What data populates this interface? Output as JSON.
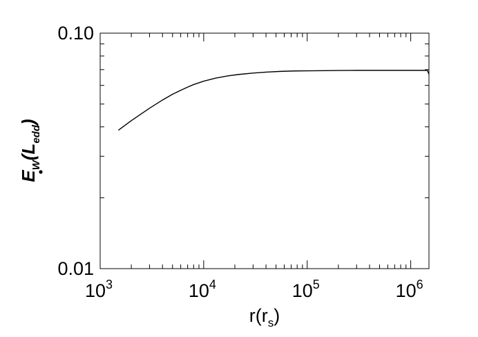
{
  "chart_data": {
    "type": "line",
    "title": "",
    "xscale": "log",
    "yscale": "log",
    "xlim": [
      1000,
      1500000
    ],
    "ylim": [
      0.01,
      0.1
    ],
    "x_ticks": [
      {
        "value": 1000,
        "base": "10",
        "exp": "3"
      },
      {
        "value": 10000,
        "base": "10",
        "exp": "4"
      },
      {
        "value": 100000,
        "base": "10",
        "exp": "5"
      },
      {
        "value": 1000000,
        "base": "10",
        "exp": "6"
      }
    ],
    "y_ticks": [
      {
        "value": 0.01,
        "label": "0.01"
      },
      {
        "value": 0.1,
        "label": "0.10"
      }
    ],
    "xlabel": {
      "main": "r(r",
      "sub": "s",
      "close": ")"
    },
    "ylabel": {
      "main": "E",
      "sub": "W",
      "paren_open": "(",
      "inner": "L",
      "inner_sub": "edd",
      "paren_close": ")"
    },
    "grid": false,
    "series": [
      {
        "color": "#000000",
        "x": [
          1500,
          2000,
          3000,
          4000,
          5000,
          6000,
          7000,
          8000,
          10000,
          13000,
          17000,
          22000,
          30000,
          40000,
          55000,
          75000,
          100000,
          150000,
          200000,
          300000,
          500000,
          700000,
          1000000,
          1300000,
          1450000,
          1500000
        ],
        "y": [
          0.0387,
          0.0425,
          0.048,
          0.052,
          0.055,
          0.0572,
          0.059,
          0.0605,
          0.0625,
          0.0644,
          0.0658,
          0.0668,
          0.0677,
          0.0683,
          0.0688,
          0.0691,
          0.0692,
          0.0693,
          0.0694,
          0.0695,
          0.0695,
          0.0695,
          0.0695,
          0.0695,
          0.0694,
          0.067
        ]
      }
    ]
  }
}
